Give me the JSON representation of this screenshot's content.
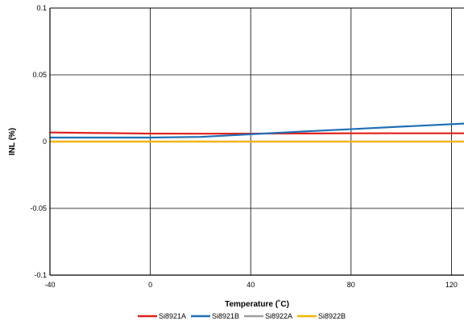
{
  "chart_data": {
    "type": "line",
    "xlabel": "Temperature (˚C)",
    "ylabel": "INL (%)",
    "xlim": [
      -40,
      125
    ],
    "ylim": [
      -0.1,
      0.1
    ],
    "x_ticks": [
      -40,
      0,
      40,
      80,
      120
    ],
    "y_ticks": [
      0.1,
      0.05,
      0,
      -0.05,
      -0.1
    ],
    "x_tick_labels": [
      "-40",
      "0",
      "40",
      "80",
      "120"
    ],
    "y_tick_labels": [
      "0.1",
      "0.05",
      "0",
      "-0.05",
      "-0.1"
    ],
    "grid": true,
    "legend_position": "bottom",
    "series": [
      {
        "name": "Si8921A",
        "color": "#e0201b",
        "x": [
          -40,
          -20,
          0,
          20,
          40,
          60,
          80,
          100,
          125
        ],
        "y": [
          0.0068,
          0.0064,
          0.006,
          0.0059,
          0.006,
          0.0061,
          0.0062,
          0.0062,
          0.0062
        ]
      },
      {
        "name": "Si8921B",
        "color": "#1f6fb5",
        "x": [
          -40,
          -20,
          0,
          20,
          40,
          60,
          80,
          100,
          125
        ],
        "y": [
          0.003,
          0.003,
          0.003,
          0.0035,
          0.0055,
          0.0075,
          0.0093,
          0.0112,
          0.0135
        ]
      },
      {
        "name": "Si8922A",
        "color": "#9e9e9e",
        "x": [
          -40,
          0,
          40,
          80,
          125
        ],
        "y": [
          0.0,
          0.0,
          0.0,
          0.0,
          0.0
        ]
      },
      {
        "name": "Si8922B",
        "color": "#f5b400",
        "x": [
          -40,
          0,
          40,
          80,
          125
        ],
        "y": [
          0.0,
          0.0,
          0.0,
          0.0,
          0.0
        ]
      }
    ]
  }
}
